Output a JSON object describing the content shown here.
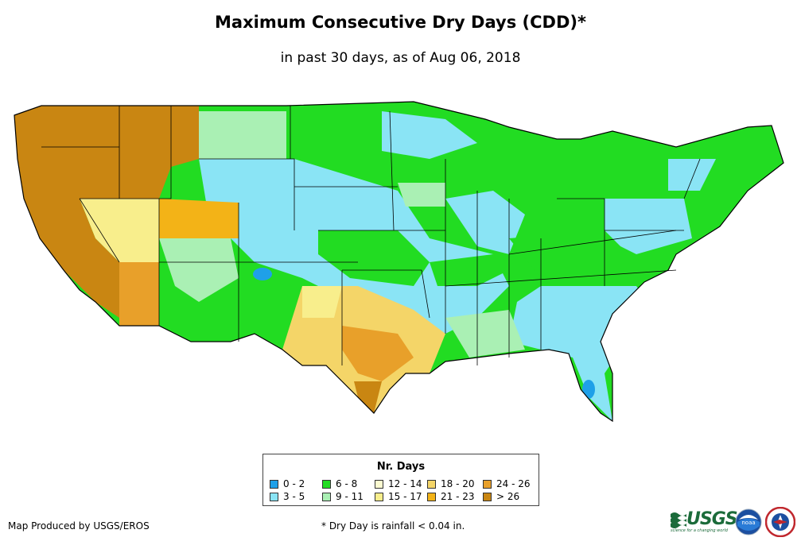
{
  "title": "Maximum Consecutive Dry Days (CDD)*",
  "subtitle": "in past 30 days, as of Aug 06, 2018",
  "legend": {
    "title": "Nr. Days",
    "items": [
      {
        "label": "0 - 2",
        "color": "#1fa0e8"
      },
      {
        "label": "3 - 5",
        "color": "#8ae4f5"
      },
      {
        "label": "6 - 8",
        "color": "#22dc22"
      },
      {
        "label": "9 - 11",
        "color": "#aaf0b4"
      },
      {
        "label": "12 - 14",
        "color": "#fbfad0"
      },
      {
        "label": "15 - 17",
        "color": "#f8ee8c"
      },
      {
        "label": "18 - 20",
        "color": "#f4d568"
      },
      {
        "label": "21 - 23",
        "color": "#f3b317"
      },
      {
        "label": "24 - 26",
        "color": "#e8a02a"
      },
      {
        "label": "> 26",
        "color": "#c98612"
      }
    ]
  },
  "footer": {
    "produced_by": "Map Produced by USGS/EROS",
    "note": "* Dry Day is rainfall < 0.04 in."
  },
  "logos": {
    "usgs": "USGS",
    "usgs_tagline": "science for a changing world",
    "noaa": "noaa"
  }
}
